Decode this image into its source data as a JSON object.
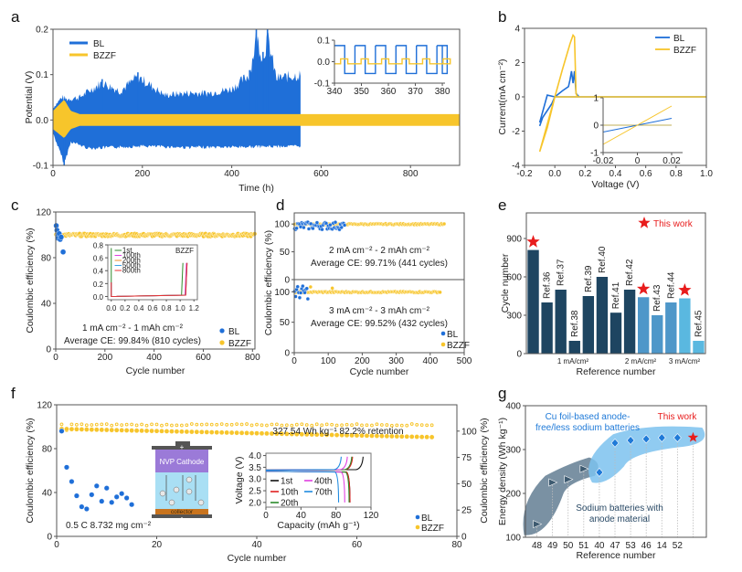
{
  "chart_data": [
    {
      "id": "a",
      "panel_label": "a",
      "type": "line",
      "title": "",
      "xlabel": "Time (h)",
      "ylabel": "Potential (V)",
      "xlim": [
        0,
        910
      ],
      "ylim": [
        -0.1,
        0.2
      ],
      "xticks": [
        0,
        200,
        400,
        600,
        800
      ],
      "yticks": [
        -0.1,
        0.0,
        0.1,
        0.2
      ],
      "ytick_labels": [
        "-0.1",
        "0.0",
        "0.1",
        "0.2"
      ],
      "legend": {
        "position": "top-left",
        "entries": [
          "BL",
          "BZZF"
        ]
      },
      "series": [
        {
          "name": "BL",
          "color": "#1f6fd8",
          "end_time": 555,
          "envelope_upper": [
            [
              0,
              0.03
            ],
            [
              20,
              0.055
            ],
            [
              30,
              0.05
            ],
            [
              60,
              0.055
            ],
            [
              80,
              0.07
            ],
            [
              110,
              0.09
            ],
            [
              150,
              0.07
            ],
            [
              190,
              0.105
            ],
            [
              250,
              0.06
            ],
            [
              300,
              0.065
            ],
            [
              350,
              0.065
            ],
            [
              400,
              0.075
            ],
            [
              440,
              0.11
            ],
            [
              455,
              0.2
            ],
            [
              470,
              0.15
            ],
            [
              480,
              0.2
            ],
            [
              500,
              0.1
            ],
            [
              555,
              0.11
            ]
          ],
          "envelope_lower": [
            [
              0,
              -0.03
            ],
            [
              25,
              -0.1
            ],
            [
              40,
              -0.05
            ],
            [
              80,
              -0.065
            ],
            [
              200,
              -0.06
            ],
            [
              300,
              -0.063
            ],
            [
              400,
              -0.062
            ],
            [
              555,
              -0.06
            ]
          ]
        },
        {
          "name": "BZZF",
          "color": "#f7c52b",
          "end_time": 910,
          "envelope_upper": [
            [
              0,
              0.02
            ],
            [
              25,
              0.045
            ],
            [
              40,
              0.02
            ],
            [
              60,
              0.013
            ],
            [
              910,
              0.013
            ]
          ],
          "envelope_lower": [
            [
              0,
              -0.02
            ],
            [
              25,
              -0.04
            ],
            [
              40,
              -0.02
            ],
            [
              60,
              -0.013
            ],
            [
              910,
              -0.013
            ]
          ]
        }
      ],
      "inset": {
        "xlim": [
          340,
          381
        ],
        "ylim": [
          -0.1,
          0.1
        ],
        "xticks": [
          340,
          350,
          360,
          370,
          380
        ],
        "yticks": [
          -0.1,
          0.0,
          0.1
        ],
        "ytick_labels": [
          "-0.1",
          "0.0",
          "0.1"
        ],
        "BL_high": 0.075,
        "BL_low": -0.055,
        "BZZF_high": 0.013,
        "BZZF_low": -0.01,
        "period": 7.6
      }
    },
    {
      "id": "b",
      "panel_label": "b",
      "type": "line",
      "xlabel": "Voltage (V)",
      "ylabel": "Current(mA cm⁻²)",
      "xlim": [
        -0.2,
        1.0
      ],
      "ylim": [
        -4,
        4
      ],
      "xticks": [
        -0.2,
        0.0,
        0.2,
        0.4,
        0.6,
        0.8,
        1.0
      ],
      "xtick_labels": [
        "-0.2",
        "0.0",
        "0.2",
        "0.4",
        "0.6",
        "0.8",
        "1.0"
      ],
      "yticks": [
        -4,
        -2,
        0,
        2,
        4
      ],
      "legend": {
        "position": "top-right",
        "entries": [
          "BL",
          "BZZF"
        ]
      },
      "series": [
        {
          "name": "BL",
          "color": "#1f6fd8",
          "points": [
            [
              -0.1,
              -1.7
            ],
            [
              -0.08,
              -1.2
            ],
            [
              -0.05,
              -0.8
            ],
            [
              -0.02,
              -0.4
            ],
            [
              0.0,
              0.0
            ],
            [
              0.05,
              0.35
            ],
            [
              0.09,
              0.6
            ],
            [
              0.1,
              1.0
            ],
            [
              0.11,
              1.5
            ],
            [
              0.12,
              0.8
            ],
            [
              0.13,
              1.5
            ],
            [
              0.14,
              0.2
            ],
            [
              0.16,
              0.0
            ],
            [
              1.0,
              0.0
            ],
            [
              0.0,
              0.0
            ],
            [
              -0.05,
              0.1
            ],
            [
              -0.1,
              -1.5
            ]
          ]
        },
        {
          "name": "BZZF",
          "color": "#f7c52b",
          "points": [
            [
              -0.1,
              -3.2
            ],
            [
              -0.05,
              -1.8
            ],
            [
              0.0,
              0.0
            ],
            [
              0.05,
              1.6
            ],
            [
              0.1,
              3.1
            ],
            [
              0.12,
              3.6
            ],
            [
              0.13,
              3.5
            ],
            [
              0.14,
              0.2
            ],
            [
              0.15,
              0.0
            ],
            [
              1.0,
              0.0
            ],
            [
              0.0,
              0.0
            ],
            [
              -0.1,
              -3.2
            ]
          ]
        }
      ],
      "inset": {
        "xlim": [
          -0.02,
          0.02
        ],
        "ylim": [
          -1,
          1
        ],
        "xticks": [
          -0.02,
          0,
          0.02
        ],
        "xtick_labels": [
          "-0.02",
          "0",
          "0.02"
        ],
        "yticks": [
          -1,
          0,
          1
        ],
        "ytick_labels": [
          "-1",
          "0",
          "1"
        ],
        "BL_slope_end": 0.25,
        "BZZF_slope_end": 0.7
      }
    },
    {
      "id": "c",
      "panel_label": "c",
      "type": "scatter",
      "xlabel": "Cycle number",
      "ylabel": "Coulombic efficiency (%)",
      "xlim": [
        0,
        810
      ],
      "ylim": [
        0,
        120
      ],
      "xticks": [
        0,
        200,
        400,
        600,
        800
      ],
      "yticks": [
        0,
        40,
        80,
        120
      ],
      "legend": {
        "position": "bottom-right",
        "entries": [
          "BL",
          "BZZF"
        ]
      },
      "annotation_lines": [
        "1 mA cm⁻² - 1 mAh cm⁻²",
        "Average CE: 99.84%  (810 cycles)"
      ],
      "series": [
        {
          "name": "BL",
          "color": "#1f6fd8",
          "points": [
            [
              2,
              108
            ],
            [
              5,
              104
            ],
            [
              8,
              100
            ],
            [
              10,
              97
            ],
            [
              14,
              101
            ],
            [
              18,
              96
            ],
            [
              22,
              98
            ],
            [
              30,
              85
            ]
          ]
        },
        {
          "name": "BZZF",
          "color": "#f7c52b",
          "constant": 99.84,
          "cycles": 810
        }
      ],
      "inset": {
        "title": "BZZF",
        "xlim": [
          -0.05,
          1.25
        ],
        "ylim": [
          -0.05,
          0.8
        ],
        "xticks": [
          0.0,
          0.2,
          0.4,
          0.6,
          0.8,
          1.0,
          1.2
        ],
        "xtick_labels": [
          "0.0",
          "0.2",
          "0.4",
          "0.6",
          "0.8",
          "1.0",
          "1.2"
        ],
        "yticks": [
          0.0,
          0.2,
          0.4,
          0.6,
          0.8
        ],
        "ytick_labels": [
          "0.0",
          "0.2",
          "0.4",
          "0.6",
          "0.8"
        ],
        "series": [
          {
            "name": "1st",
            "color": "#2e8b2e",
            "start_spike": 0.75,
            "end_x": 1.04,
            "end_spike": 0.52
          },
          {
            "name": "100th",
            "color": "#e040e0",
            "start_spike": 0.22,
            "end_x": 1.09,
            "end_spike": 0.52
          },
          {
            "name": "200th",
            "color": "#f28c28",
            "start_spike": 0.22,
            "end_x": 1.1,
            "end_spike": 0.52
          },
          {
            "name": "500th",
            "color": "#3aa0e8",
            "start_spike": 0.22,
            "end_x": 1.1,
            "end_spike": 0.52
          },
          {
            "name": "800th",
            "color": "#e83030",
            "start_spike": 0.22,
            "end_x": 1.1,
            "end_spike": 0.52
          }
        ]
      }
    },
    {
      "id": "d",
      "panel_label": "d",
      "type": "scatter",
      "xlabel": "Cycle number",
      "ylabel": "Coulombic efficiency (%)",
      "xlim": [
        0,
        500
      ],
      "xticks": [
        0,
        100,
        200,
        300,
        400,
        500
      ],
      "subplots": [
        {
          "ylim": [
            0,
            120
          ],
          "yticks": [
            0,
            50,
            100
          ],
          "annotation_lines": [
            "2 mA cm⁻² - 2 mAh cm⁻²",
            "Average CE: 99.71%  (441 cycles)"
          ],
          "BL_end": 150,
          "BZZF_end": 441,
          "BZZF_value": 99.71,
          "BL_band": [
            90,
            104
          ]
        },
        {
          "ylim": [
            0,
            120
          ],
          "yticks": [
            0,
            50,
            100
          ],
          "annotation_lines": [
            "3 mA cm⁻² - 3 mAh cm⁻²",
            "Average CE: 99.52%  (432 cycles)"
          ],
          "BL_end": 40,
          "BZZF_end": 432,
          "BZZF_value": 99.52,
          "BL_band": [
            88,
            110
          ],
          "BZZF_outliers": [
            [
              48,
              120
            ],
            [
              112,
              118
            ]
          ]
        }
      ],
      "legend": {
        "position": "bottom-right",
        "entries": [
          "BL",
          "BZZF"
        ]
      }
    },
    {
      "id": "e",
      "panel_label": "e",
      "type": "bar",
      "xlabel": "Reference number",
      "ylabel": "Cycle number",
      "ylim": [
        0,
        1100
      ],
      "yticks": [
        0,
        300,
        600,
        900
      ],
      "categories": [
        "This work (1 mA)",
        "Ref.36",
        "Ref.37",
        "Ref.38",
        "Ref.39",
        "Ref.40",
        "Ref.41",
        "Ref.42",
        "This work (2 mA)",
        "Ref.43",
        "Ref.44",
        "This work (3 mA)",
        "Ref.45"
      ],
      "bar_labels": [
        "",
        "Ref.36",
        "Ref.37",
        "Ref.38",
        "Ref.39",
        "Ref.40",
        "Ref.41",
        "Ref.42",
        "",
        "Ref.43",
        "Ref.44",
        "",
        "Ref.45"
      ],
      "values": [
        810,
        400,
        500,
        100,
        450,
        600,
        320,
        500,
        441,
        300,
        400,
        432,
        100
      ],
      "groups": [
        0,
        0,
        0,
        0,
        0,
        0,
        0,
        0,
        1,
        1,
        1,
        2,
        2
      ],
      "group_colors": [
        "#1e4561",
        "#4e97c9",
        "#5ab8e0"
      ],
      "group_labels": [
        "1 mA/cm²",
        "2 mA/cm²",
        "3 mA/cm²"
      ],
      "star_indices": [
        0,
        8,
        11
      ],
      "legend": {
        "position": "top-right",
        "entries": [
          "This work"
        ],
        "color": "#e81c1c"
      }
    },
    {
      "id": "f",
      "panel_label": "f",
      "type": "scatter",
      "xlabel": "Cycle number",
      "ylabel": "Coulombic efficiency (%)",
      "ylabel_right": "Coulombic efficiency (%)",
      "xlim": [
        0,
        80
      ],
      "ylim": [
        0,
        120
      ],
      "ylim_right": [
        0,
        125
      ],
      "xticks": [
        0,
        20,
        40,
        60,
        80
      ],
      "yticks": [
        0,
        40,
        80,
        120
      ],
      "yticks_right": [
        0,
        25,
        50,
        75,
        100
      ],
      "legend": {
        "position": "bottom-right",
        "entries": [
          "BL",
          "BZZF"
        ]
      },
      "annotations": [
        "327.54 Wh kg⁻¹   82.2% retention",
        "0.5 C 8.732 mg cm⁻²"
      ],
      "cell_labels": {
        "cathode": "NVP Cathode",
        "collector": "collector",
        "plus": "+",
        "minus": "-",
        "ion": "Na"
      },
      "series": [
        {
          "name": "BL",
          "color": "#1f6fd8",
          "points": [
            [
              1,
              96
            ],
            [
              2,
              63
            ],
            [
              3,
              50
            ],
            [
              4,
              37
            ],
            [
              5,
              27
            ],
            [
              6,
              25
            ],
            [
              7,
              38
            ],
            [
              8,
              46
            ],
            [
              9,
              32
            ],
            [
              10,
              44
            ],
            [
              11,
              31
            ],
            [
              12,
              36
            ],
            [
              13,
              39
            ],
            [
              14,
              35
            ],
            [
              15,
              29
            ]
          ]
        },
        {
          "name": "BZZF capacity",
          "color": "#f7c52b",
          "start": 98,
          "end": 90.5,
          "cycles": 75
        },
        {
          "name": "BZZF CE",
          "color": "#f7c52b",
          "hollow": true,
          "value_right": 106,
          "cycles": 75
        }
      ],
      "inset": {
        "xlabel": "Capacity (mAh g⁻¹)",
        "ylabel": "Voltage (V)",
        "xlim": [
          0,
          120
        ],
        "ylim": [
          1.8,
          4.1
        ],
        "xticks": [
          0,
          40,
          80,
          120
        ],
        "yticks": [
          2.0,
          2.5,
          3.0,
          3.5,
          4.0
        ],
        "ytick_labels": [
          "2.0",
          "2.5",
          "3.0",
          "3.5",
          "4.0"
        ],
        "series": [
          {
            "name": "1st",
            "color": "#111111",
            "charge_end": 111,
            "discharge_end": 96
          },
          {
            "name": "10th",
            "color": "#e02020",
            "charge_end": 99,
            "discharge_end": 96
          },
          {
            "name": "20th",
            "color": "#2a8a2a",
            "charge_end": 98,
            "discharge_end": 95
          },
          {
            "name": "40th",
            "color": "#e040e0",
            "charge_end": 93,
            "discharge_end": 90
          },
          {
            "name": "70th",
            "color": "#1f8ae0",
            "charge_end": 86,
            "discharge_end": 83
          }
        ]
      }
    },
    {
      "id": "g",
      "panel_label": "g",
      "type": "scatter",
      "xlabel": "Reference number",
      "ylabel": "Energy density (Wh kg⁻¹)",
      "ylim": [
        100,
        400
      ],
      "yticks": [
        100,
        200,
        300,
        400
      ],
      "categories": [
        "48",
        "49",
        "50",
        "51",
        "40",
        "47",
        "53",
        "46",
        "14",
        "52",
        "This work"
      ],
      "values": [
        130,
        225,
        232,
        256,
        248,
        315,
        321,
        324,
        327,
        327,
        327.54
      ],
      "groups": [
        "anode",
        "anode",
        "anode",
        "anode",
        "cu",
        "cu",
        "cu",
        "cu",
        "cu",
        "cu",
        "this"
      ],
      "group_labels": {
        "anode": "Sodium batteries with anode material",
        "cu": "Cu foil-based anode-free/less sodium batteries",
        "this": "This work"
      },
      "colors": {
        "anode": "#3d5a70",
        "cu": "#1f7ad8",
        "this": "#e81c1c",
        "anode_region": "#6b8599",
        "cu_region": "#7cc2ef"
      }
    }
  ]
}
